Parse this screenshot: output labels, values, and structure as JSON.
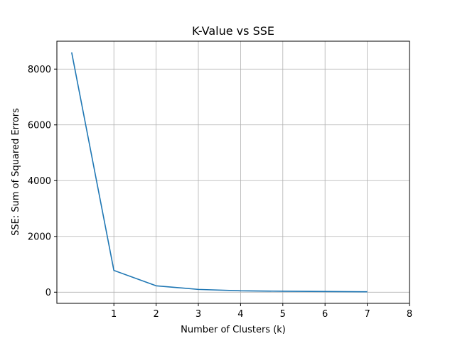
{
  "chart_data": {
    "type": "line",
    "title": "K-Value vs SSE",
    "xlabel": "Number of Clusters (k)",
    "ylabel": "SSE: Sum of Squared Errors",
    "xlim": [
      -0.35,
      8
    ],
    "ylim": [
      -400,
      9000
    ],
    "xticks": [
      1,
      2,
      3,
      4,
      5,
      6,
      7,
      8
    ],
    "yticks": [
      0,
      2000,
      4000,
      6000,
      8000
    ],
    "grid": true,
    "line_color": "#1f77b4",
    "series": [
      {
        "x": [
          0,
          1,
          2,
          3,
          4,
          5,
          6,
          7
        ],
        "values": [
          8600,
          780,
          230,
          100,
          50,
          35,
          25,
          15
        ]
      }
    ]
  }
}
